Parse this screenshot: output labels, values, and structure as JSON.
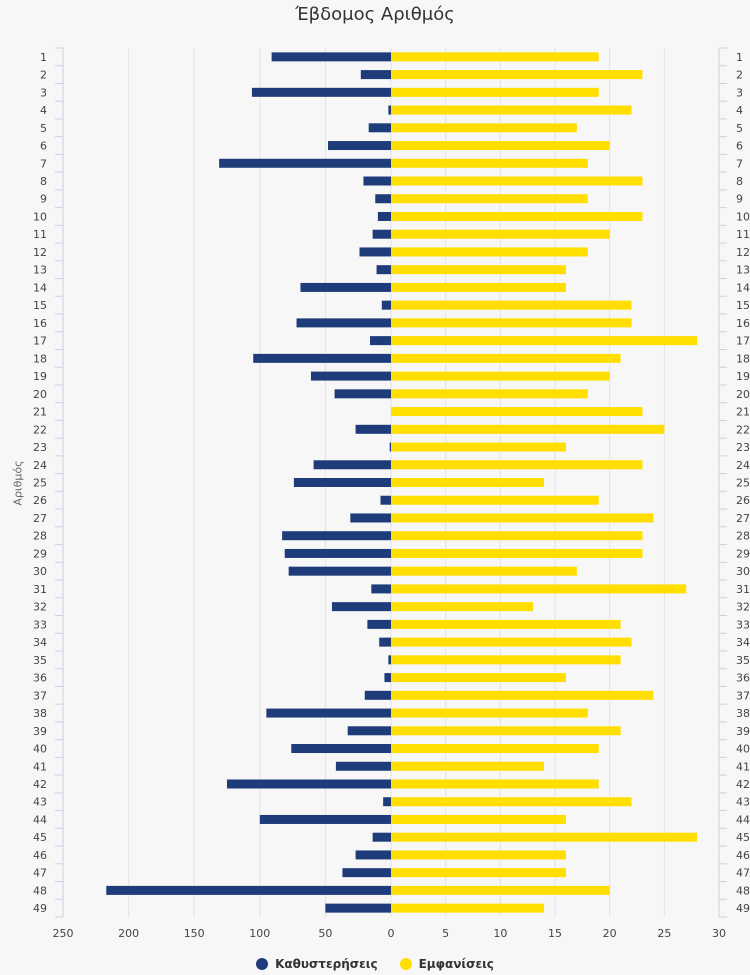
{
  "chart_data": {
    "type": "bar",
    "orientation": "horizontal",
    "title": "Έβδομος Αριθμός",
    "ylabel": "Αριθμός",
    "categories": [
      "1",
      "2",
      "3",
      "4",
      "5",
      "6",
      "7",
      "8",
      "9",
      "10",
      "11",
      "12",
      "13",
      "14",
      "15",
      "16",
      "17",
      "18",
      "19",
      "20",
      "21",
      "22",
      "23",
      "24",
      "25",
      "26",
      "27",
      "28",
      "29",
      "30",
      "31",
      "32",
      "33",
      "34",
      "35",
      "36",
      "37",
      "38",
      "39",
      "40",
      "41",
      "42",
      "43",
      "44",
      "45",
      "46",
      "47",
      "48",
      "49"
    ],
    "series": [
      {
        "name": "Καθυστερήσεις",
        "color": "#1f3c7a",
        "axis": "left",
        "xlim": [
          0,
          250
        ],
        "ticks": [
          "250",
          "200",
          "150",
          "100",
          "50",
          "0"
        ],
        "values": [
          91,
          23,
          106,
          2,
          17,
          48,
          131,
          21,
          12,
          10,
          14,
          24,
          11,
          69,
          7,
          72,
          16,
          105,
          61,
          43,
          0,
          27,
          1,
          59,
          74,
          8,
          31,
          83,
          81,
          78,
          15,
          45,
          18,
          9,
          2,
          5,
          20,
          95,
          33,
          76,
          42,
          125,
          6,
          100,
          14,
          27,
          37,
          217,
          50
        ]
      },
      {
        "name": "Εμφανίσεις",
        "color": "#ffde00",
        "axis": "right",
        "xlim": [
          0,
          30
        ],
        "ticks": [
          "0",
          "5",
          "10",
          "15",
          "20",
          "25",
          "30"
        ],
        "values": [
          19,
          23,
          19,
          22,
          17,
          20,
          18,
          23,
          18,
          23,
          20,
          18,
          16,
          16,
          22,
          22,
          28,
          21,
          20,
          18,
          23,
          25,
          16,
          23,
          14,
          19,
          24,
          23,
          23,
          17,
          27,
          13,
          21,
          22,
          21,
          16,
          24,
          18,
          21,
          19,
          14,
          19,
          22,
          16,
          28,
          16,
          16,
          20,
          14
        ]
      }
    ],
    "grid": true,
    "legend": "bottom-center"
  }
}
